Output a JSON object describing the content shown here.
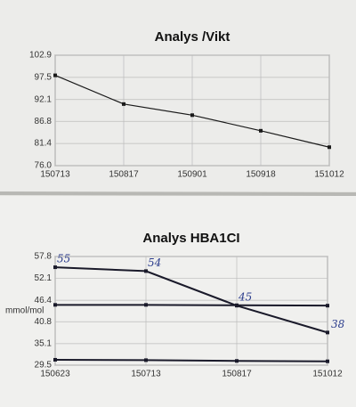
{
  "chart_data": [
    {
      "type": "line",
      "title": "Analys /Vikt",
      "categories": [
        "150713",
        "150817",
        "150901",
        "150918",
        "151012"
      ],
      "values": [
        98.0,
        91.0,
        88.3,
        84.5,
        80.5
      ],
      "color": "#1a1a1a",
      "ylim": [
        76,
        102.9
      ],
      "yticks": [
        {
          "value": 76,
          "label": "76.0"
        },
        81.4,
        86.8,
        92.1,
        97.5,
        102.9
      ],
      "grid": true
    },
    {
      "type": "line",
      "title": "Analys HBA1CI",
      "y_label": "mmol/mol",
      "categories": [
        "150623",
        "150713",
        "150817",
        "151012"
      ],
      "series": [
        {
          "color": "#1a1a2a",
          "values": [
            55,
            54,
            45,
            38
          ],
          "data_labels": true
        },
        {
          "color": "#1a1a2a",
          "values": [
            45.2,
            45.2,
            45.1,
            45.0
          ]
        },
        {
          "color": "#1a1a2a",
          "values": [
            30.9,
            30.8,
            30.6,
            30.5
          ]
        }
      ],
      "ylim": [
        29.5,
        57.8
      ],
      "yticks": [
        29.5,
        35.1,
        40.8,
        46.4,
        52.1,
        57.8
      ],
      "grid": true
    }
  ]
}
